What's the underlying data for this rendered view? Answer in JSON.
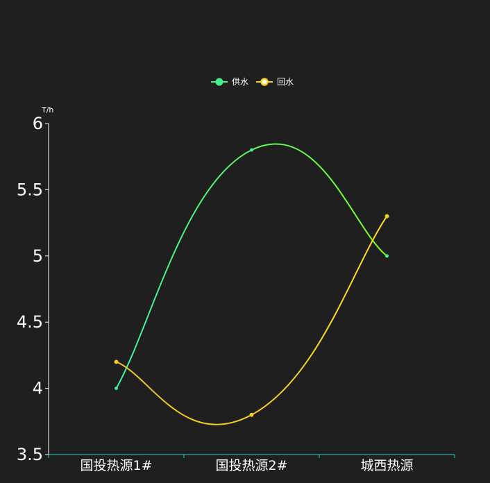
{
  "chart_data": {
    "type": "line",
    "smooth": true,
    "categories": [
      "国投热源1#",
      "国投热源2#",
      "城西热源"
    ],
    "series": [
      {
        "name": "供水",
        "values": [
          4.0,
          5.8,
          5.0
        ],
        "color_start": "#3af0a0",
        "color_end": "#7cff20",
        "marker_color": "#44ee88"
      },
      {
        "name": "回水",
        "values": [
          4.2,
          3.8,
          5.3
        ],
        "color_start": "#f0c020",
        "color_end": "#ffe020",
        "marker_color": "#f0d020"
      }
    ],
    "yunit": "T/h",
    "ylim": [
      3.5,
      6
    ],
    "yticks": [
      "3.5",
      "4",
      "4.5",
      "5",
      "5.5",
      "6"
    ],
    "ytick_values": [
      3.5,
      4,
      4.5,
      5,
      5.5,
      6
    ],
    "grid": false,
    "legend_position": "top-center",
    "axis_color": "#2ecfc4"
  }
}
